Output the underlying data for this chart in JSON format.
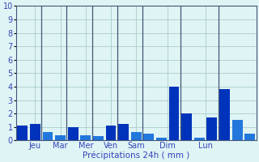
{
  "values": [
    1.1,
    1.2,
    0.6,
    0.4,
    1.0,
    0.4,
    0.3,
    1.1,
    1.2,
    0.6,
    0.5,
    0.2,
    4.0,
    2.0,
    0.2,
    1.7,
    3.8,
    1.5,
    0.5
  ],
  "bar_color_dark": "#0033bb",
  "bar_color_light": "#2277dd",
  "background_color": "#dff4f4",
  "grid_color": "#aacccc",
  "axis_color": "#5566aa",
  "tick_label_color": "#3344bb",
  "xlabel": "Précipitations 24h ( mm )",
  "ylim": [
    0,
    10
  ],
  "yticks": [
    0,
    1,
    2,
    3,
    4,
    5,
    6,
    7,
    8,
    9,
    10
  ],
  "day_labels": [
    "Jeu",
    "Mar",
    "Mer",
    "Ven",
    "Sam",
    "Dim",
    "Lun"
  ],
  "colors": [
    "dark",
    "dark",
    "light",
    "light",
    "dark",
    "light",
    "light",
    "dark",
    "dark",
    "light",
    "light",
    "light",
    "dark",
    "dark",
    "light",
    "dark",
    "dark",
    "light",
    "light"
  ],
  "separators": [
    2,
    4,
    6,
    8,
    10,
    13,
    16
  ],
  "day_tick_pos": [
    1,
    3,
    5,
    7,
    9,
    11.5,
    14.5
  ]
}
